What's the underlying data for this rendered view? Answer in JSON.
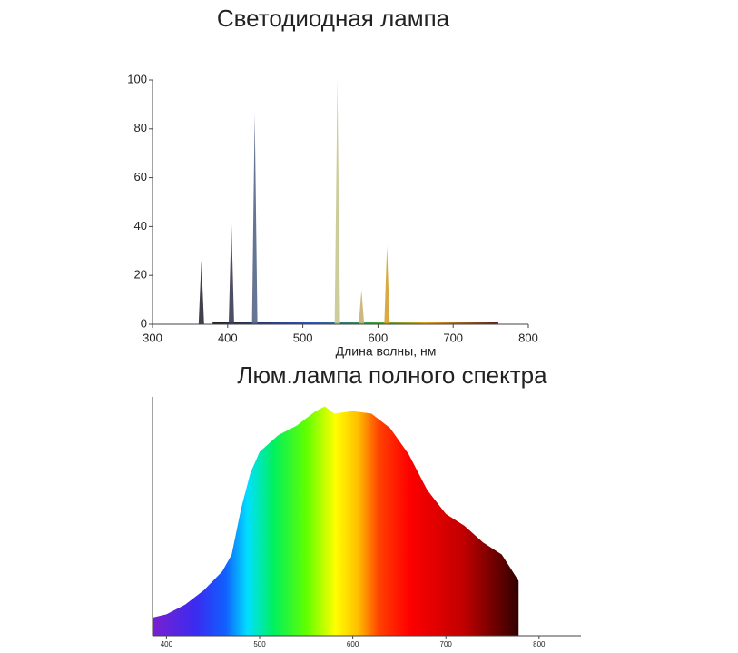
{
  "chart_data": [
    {
      "type": "spike",
      "title": "Светодиодная лампа",
      "xlabel": "Длина волны, нм",
      "x": [
        365,
        405,
        436,
        546,
        578,
        612
      ],
      "values": [
        26,
        42,
        86,
        100,
        14,
        32
      ],
      "colors": [
        "#2a2a3a",
        "#3a3a55",
        "#556688",
        "#c8c890",
        "#c8b070",
        "#d4a030"
      ],
      "xlim": [
        300,
        800
      ],
      "xticks": [
        300,
        400,
        500,
        600,
        700,
        800
      ],
      "ylim": [
        0,
        100
      ],
      "yticks": [
        0,
        20,
        40,
        60,
        80,
        100
      ]
    },
    {
      "type": "area",
      "title": "Люм.лампа полного спектра",
      "x": [
        385,
        400,
        420,
        440,
        460,
        470,
        480,
        490,
        500,
        520,
        540,
        560,
        570,
        580,
        600,
        620,
        640,
        660,
        680,
        700,
        720,
        740,
        760,
        778
      ],
      "values": [
        7.6,
        9,
        13,
        19,
        27,
        34,
        53,
        68,
        77,
        84,
        88,
        94,
        96,
        93,
        94,
        93,
        87,
        76,
        61,
        51,
        46,
        39,
        34,
        23
      ],
      "xlim": [
        385,
        845
      ],
      "xticks": [
        400,
        500,
        600,
        700,
        800
      ],
      "ylim": [
        0,
        100
      ]
    }
  ]
}
